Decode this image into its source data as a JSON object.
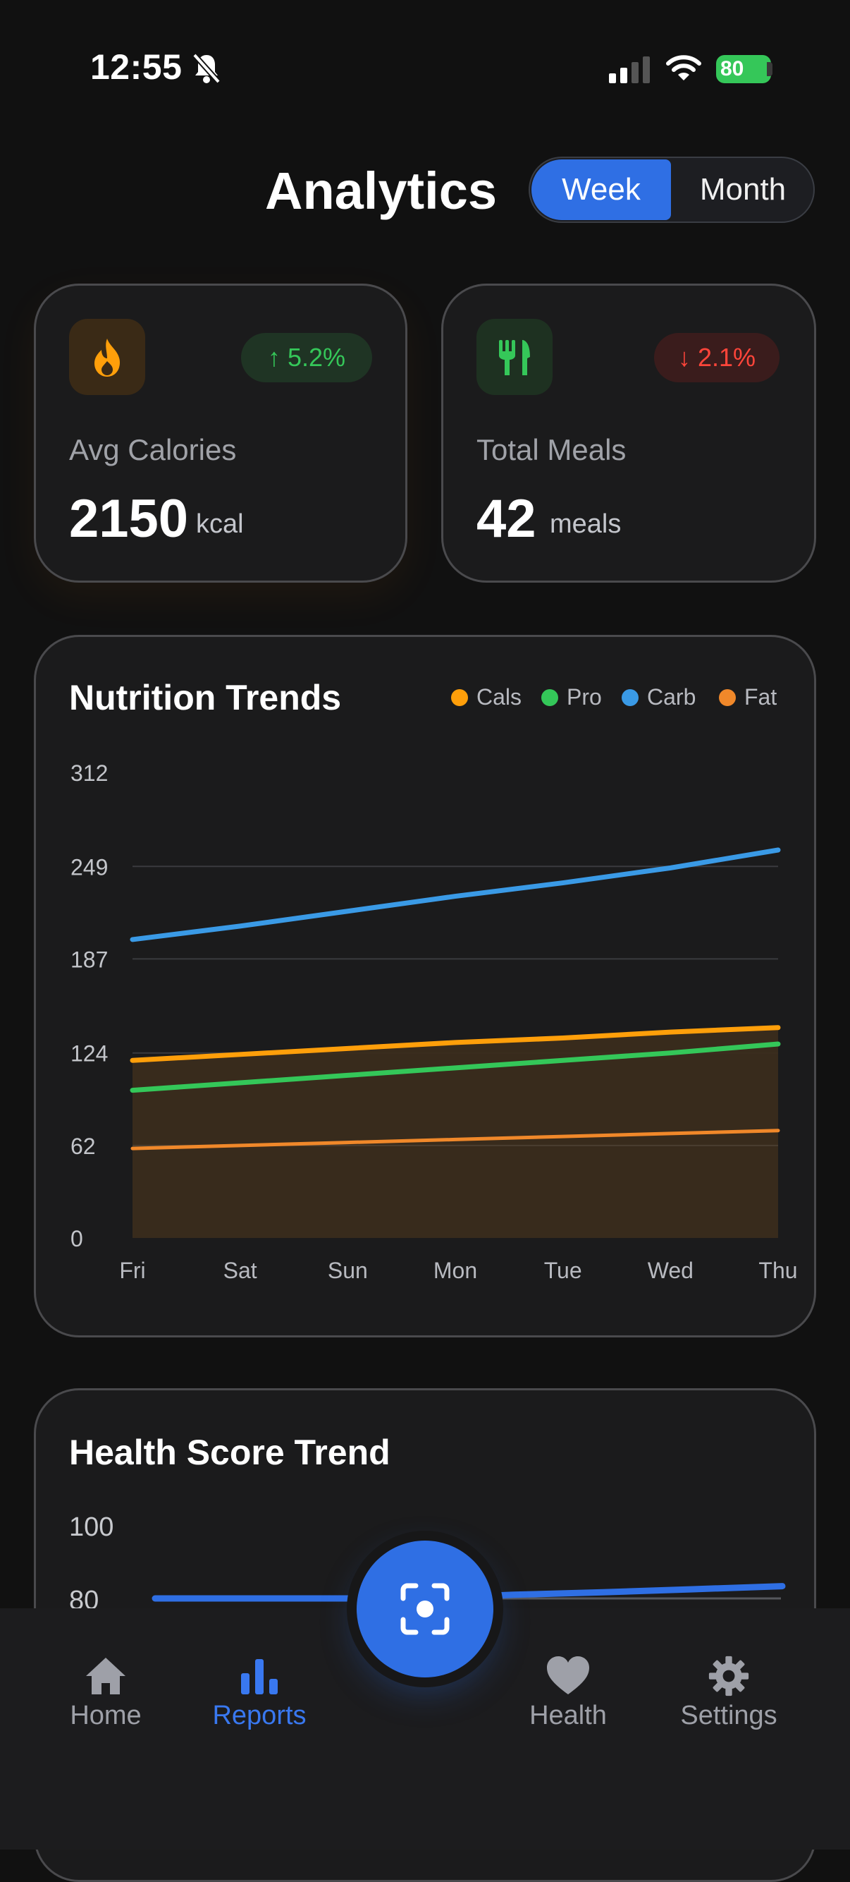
{
  "status": {
    "time": "12:55",
    "battery": "80"
  },
  "header": {
    "title": "Analytics",
    "segment": {
      "week": "Week",
      "month": "Month",
      "selected": "Week"
    }
  },
  "stats": [
    {
      "icon": "flame-icon",
      "trend": "5.2%",
      "trend_dir": "up",
      "label": "Avg Calories",
      "value": "2150",
      "unit": "kcal"
    },
    {
      "icon": "utensils-icon",
      "trend": "2.1%",
      "trend_dir": "down",
      "label": "Total Meals",
      "value": "42",
      "unit": "meals"
    }
  ],
  "nutrition": {
    "title": "Nutrition Trends",
    "legend": [
      "Cals",
      "Pro",
      "Carb",
      "Fat"
    ],
    "chart_data": {
      "type": "line",
      "title": "Nutrition Trends",
      "categories": [
        "Fri",
        "Sat",
        "Sun",
        "Mon",
        "Tue",
        "Wed",
        "Thu"
      ],
      "y_ticks": [
        "312",
        "249",
        "187",
        "124",
        "62",
        "0"
      ],
      "ylim": [
        0,
        312
      ],
      "series": [
        {
          "name": "Cals",
          "color": "#ff9f0a",
          "values": [
            119,
            123,
            127,
            131,
            134,
            138,
            141
          ]
        },
        {
          "name": "Pro",
          "color": "#34c759",
          "values": [
            99,
            104,
            109,
            114,
            119,
            124,
            130
          ]
        },
        {
          "name": "Carb",
          "color": "#3a9ae6",
          "values": [
            200,
            209,
            219,
            229,
            238,
            248,
            260
          ]
        },
        {
          "name": "Fat",
          "color": "#f0882a",
          "values": [
            60,
            62,
            64,
            66,
            68,
            70,
            72
          ]
        }
      ]
    }
  },
  "health": {
    "title": "Health Score Trend",
    "chart_data": {
      "type": "line",
      "title": "Health Score Trend",
      "y_ticks": [
        "100",
        "80"
      ],
      "ylim": [
        80,
        100
      ],
      "series": [
        {
          "name": "Health Score",
          "color": "#2f6fe4",
          "values": [
            80,
            80,
            80,
            80,
            80.6,
            81,
            81.5,
            82
          ]
        }
      ]
    }
  },
  "nav": {
    "items": [
      "Home",
      "Reports",
      "Health",
      "Settings"
    ],
    "active": "Reports"
  }
}
